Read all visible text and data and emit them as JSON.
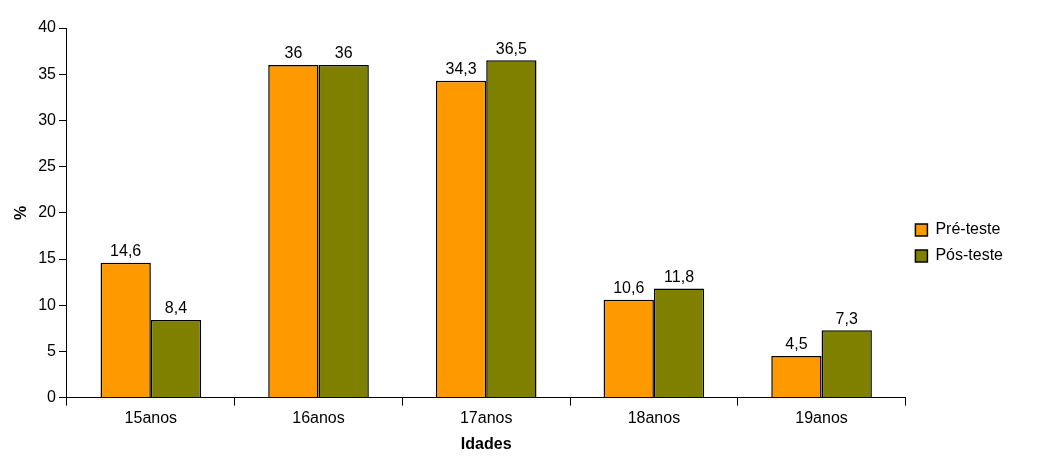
{
  "chart_data": {
    "type": "bar",
    "xlabel": "Idades",
    "ylabel": "%",
    "categories": [
      "15anos",
      "16anos",
      "17anos",
      "18anos",
      "19anos"
    ],
    "series": [
      {
        "name": "Pré-teste",
        "color": "#ff9900",
        "values": [
          14.6,
          36,
          34.3,
          10.6,
          4.5
        ],
        "value_labels": [
          "14,6",
          "36",
          "34,3",
          "10,6",
          "4,5"
        ]
      },
      {
        "name": "Pós-teste",
        "color": "#808000",
        "values": [
          8.4,
          36,
          36.5,
          11.8,
          7.3
        ],
        "value_labels": [
          "8,4",
          "36",
          "36,5",
          "11,8",
          "7,3"
        ]
      }
    ],
    "ylim": [
      0,
      40
    ],
    "yticks": [
      0,
      5,
      10,
      15,
      20,
      25,
      30,
      35,
      40
    ],
    "grid": false,
    "legend": "right"
  }
}
